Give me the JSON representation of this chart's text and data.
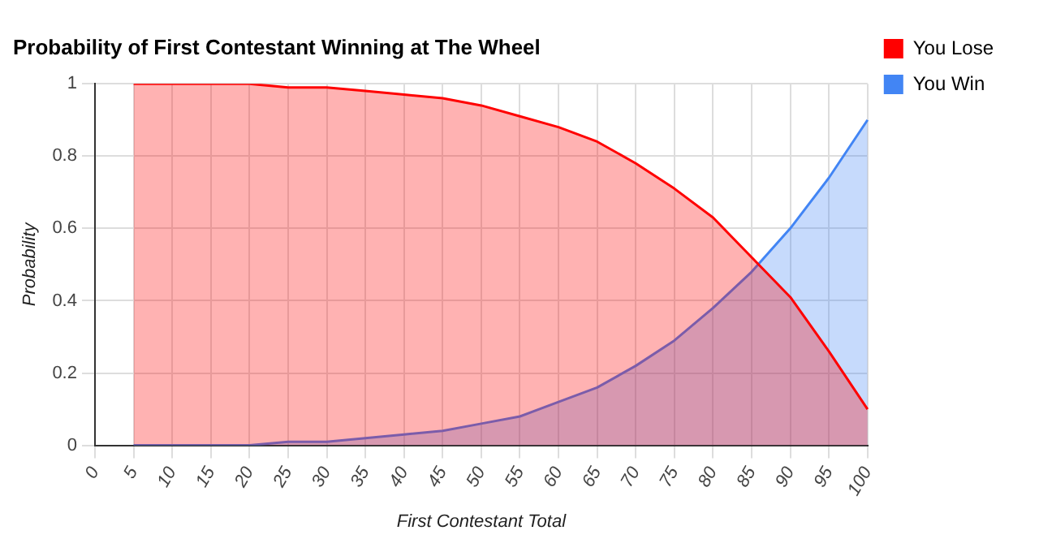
{
  "chart_data": {
    "type": "area",
    "title": "Probability of First Contestant Winning at The Wheel",
    "xlabel": "First Contestant Total",
    "ylabel": "Probability",
    "categories": [
      "0",
      "5",
      "10",
      "15",
      "20",
      "25",
      "30",
      "35",
      "40",
      "45",
      "50",
      "55",
      "60",
      "65",
      "70",
      "75",
      "80",
      "85",
      "90",
      "95",
      "100"
    ],
    "series": [
      {
        "name": "You Lose",
        "color": "#ff0000",
        "values": [
          null,
          1,
          1,
          1,
          1,
          0.99,
          0.99,
          0.98,
          0.97,
          0.96,
          0.94,
          0.91,
          0.88,
          0.84,
          0.78,
          0.71,
          0.63,
          0.52,
          0.41,
          0.26,
          0.1
        ]
      },
      {
        "name": "You Win",
        "color": "#4285f4",
        "values": [
          null,
          0,
          0,
          0,
          0,
          0.01,
          0.01,
          0.02,
          0.03,
          0.04,
          0.06,
          0.08,
          0.12,
          0.16,
          0.22,
          0.29,
          0.38,
          0.48,
          0.6,
          0.74,
          0.9
        ]
      }
    ],
    "ylim": [
      0,
      1
    ],
    "yticks": [
      0,
      0.2,
      0.4,
      0.6,
      0.8,
      1
    ],
    "grid": true,
    "legend": "right",
    "marker": "none",
    "line_style": "solid"
  }
}
